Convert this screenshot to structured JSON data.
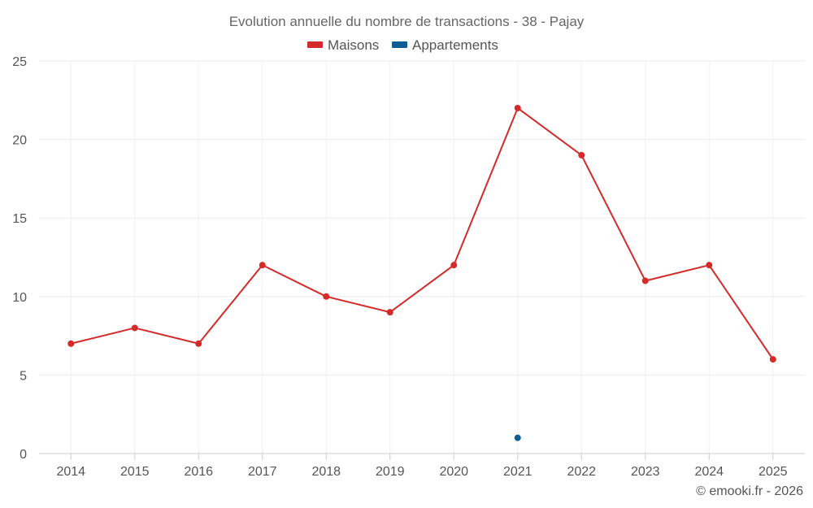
{
  "chart_data": {
    "type": "line",
    "title": "Evolution annuelle du nombre de transactions - 38 - Pajay",
    "categories": [
      "2014",
      "2015",
      "2016",
      "2017",
      "2018",
      "2019",
      "2020",
      "2021",
      "2022",
      "2023",
      "2024",
      "2025"
    ],
    "series": [
      {
        "name": "Maisons",
        "color": "#d42a2a",
        "values": [
          7,
          8,
          7,
          12,
          10,
          9,
          12,
          22,
          19,
          11,
          12,
          6
        ]
      },
      {
        "name": "Appartements",
        "color": "#0b5f96",
        "values": [
          null,
          null,
          null,
          null,
          null,
          null,
          null,
          1,
          null,
          null,
          null,
          null
        ]
      }
    ],
    "ylim": [
      0,
      25
    ],
    "yticks": [
      0,
      5,
      10,
      15,
      20,
      25
    ],
    "grid": true,
    "legend_position": "top-center",
    "xlabel": "",
    "ylabel": ""
  },
  "credit": "© emooki.fr - 2026"
}
